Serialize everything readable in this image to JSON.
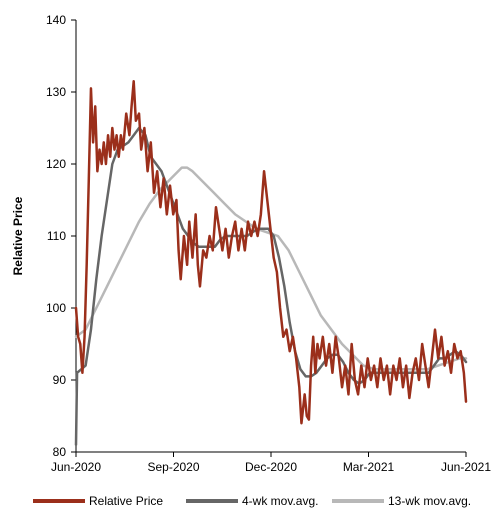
{
  "chart_data": {
    "type": "line",
    "title": "",
    "xlabel": "",
    "ylabel": "Relative Price",
    "ylim": [
      80,
      140
    ],
    "yticks": [
      "80",
      "90",
      "100",
      "110",
      "120",
      "130",
      "140"
    ],
    "xticks": [
      "Jun-2020",
      "Sep-2020",
      "Dec-2020",
      "Mar-2021",
      "Jun-2021"
    ],
    "x_range": [
      "2020-06-01",
      "2021-06-01"
    ],
    "grid": false,
    "legend_position": "bottom",
    "colors": {
      "relative_price": "#9b2f1b",
      "mov4": "#666666",
      "mov13": "#b8b8b8"
    },
    "series": [
      {
        "name": "Relative Price",
        "key": "relative_price",
        "points": [
          [
            "2020-06-01",
            100
          ],
          [
            "2020-06-03",
            96
          ],
          [
            "2020-06-05",
            95
          ],
          [
            "2020-06-07",
            91
          ],
          [
            "2020-06-09",
            96
          ],
          [
            "2020-06-11",
            106
          ],
          [
            "2020-06-13",
            118
          ],
          [
            "2020-06-15",
            130.5
          ],
          [
            "2020-06-17",
            123
          ],
          [
            "2020-06-19",
            128
          ],
          [
            "2020-06-21",
            119
          ],
          [
            "2020-06-23",
            122
          ],
          [
            "2020-06-25",
            120
          ],
          [
            "2020-06-27",
            123
          ],
          [
            "2020-06-29",
            120
          ],
          [
            "2020-07-01",
            124
          ],
          [
            "2020-07-03",
            121
          ],
          [
            "2020-07-05",
            125
          ],
          [
            "2020-07-07",
            122
          ],
          [
            "2020-07-09",
            124
          ],
          [
            "2020-07-11",
            121
          ],
          [
            "2020-07-13",
            124
          ],
          [
            "2020-07-15",
            122
          ],
          [
            "2020-07-18",
            127
          ],
          [
            "2020-07-21",
            124
          ],
          [
            "2020-07-23",
            128
          ],
          [
            "2020-07-25",
            131.5
          ],
          [
            "2020-07-27",
            126
          ],
          [
            "2020-07-30",
            127
          ],
          [
            "2020-08-01",
            122
          ],
          [
            "2020-08-04",
            125
          ],
          [
            "2020-08-07",
            119
          ],
          [
            "2020-08-10",
            123
          ],
          [
            "2020-08-13",
            116
          ],
          [
            "2020-08-16",
            119
          ],
          [
            "2020-08-19",
            114
          ],
          [
            "2020-08-22",
            118
          ],
          [
            "2020-08-25",
            113
          ],
          [
            "2020-08-28",
            117
          ],
          [
            "2020-08-31",
            113
          ],
          [
            "2020-09-03",
            115
          ],
          [
            "2020-09-05",
            108
          ],
          [
            "2020-09-07",
            104
          ],
          [
            "2020-09-10",
            110
          ],
          [
            "2020-09-13",
            106
          ],
          [
            "2020-09-15",
            112
          ],
          [
            "2020-09-18",
            107
          ],
          [
            "2020-09-21",
            113
          ],
          [
            "2020-09-23",
            106
          ],
          [
            "2020-09-25",
            103
          ],
          [
            "2020-09-28",
            108
          ],
          [
            "2020-10-01",
            107
          ],
          [
            "2020-10-04",
            110
          ],
          [
            "2020-10-07",
            108
          ],
          [
            "2020-10-10",
            114
          ],
          [
            "2020-10-13",
            111
          ],
          [
            "2020-10-16",
            108
          ],
          [
            "2020-10-19",
            111
          ],
          [
            "2020-10-22",
            107
          ],
          [
            "2020-10-25",
            110
          ],
          [
            "2020-10-28",
            112
          ],
          [
            "2020-10-31",
            108
          ],
          [
            "2020-11-03",
            111
          ],
          [
            "2020-11-06",
            108
          ],
          [
            "2020-11-09",
            112
          ],
          [
            "2020-11-12",
            110
          ],
          [
            "2020-11-15",
            112
          ],
          [
            "2020-11-18",
            110
          ],
          [
            "2020-11-21",
            113
          ],
          [
            "2020-11-24",
            119
          ],
          [
            "2020-11-27",
            115
          ],
          [
            "2020-11-30",
            111
          ],
          [
            "2020-12-03",
            107
          ],
          [
            "2020-12-06",
            105
          ],
          [
            "2020-12-09",
            100
          ],
          [
            "2020-12-12",
            96
          ],
          [
            "2020-12-15",
            97
          ],
          [
            "2020-12-18",
            94
          ],
          [
            "2020-12-21",
            96
          ],
          [
            "2020-12-24",
            93
          ],
          [
            "2020-12-27",
            89
          ],
          [
            "2020-12-29",
            84
          ],
          [
            "2021-01-01",
            88
          ],
          [
            "2021-01-03",
            85
          ],
          [
            "2021-01-05",
            84.5
          ],
          [
            "2021-01-07",
            92
          ],
          [
            "2021-01-09",
            96
          ],
          [
            "2021-01-11",
            91
          ],
          [
            "2021-01-13",
            95
          ],
          [
            "2021-01-15",
            93
          ],
          [
            "2021-01-18",
            96
          ],
          [
            "2021-01-21",
            92
          ],
          [
            "2021-01-24",
            95
          ],
          [
            "2021-01-27",
            91
          ],
          [
            "2021-01-30",
            96
          ],
          [
            "2021-02-02",
            93
          ],
          [
            "2021-02-05",
            89
          ],
          [
            "2021-02-08",
            92
          ],
          [
            "2021-02-11",
            88
          ],
          [
            "2021-02-14",
            95
          ],
          [
            "2021-02-17",
            90
          ],
          [
            "2021-02-20",
            88
          ],
          [
            "2021-02-23",
            92
          ],
          [
            "2021-02-26",
            89
          ],
          [
            "2021-03-01",
            93
          ],
          [
            "2021-03-04",
            90
          ],
          [
            "2021-03-07",
            92
          ],
          [
            "2021-03-10",
            89
          ],
          [
            "2021-03-13",
            93
          ],
          [
            "2021-03-16",
            90
          ],
          [
            "2021-03-19",
            92
          ],
          [
            "2021-03-22",
            88
          ],
          [
            "2021-03-25",
            92
          ],
          [
            "2021-03-28",
            90
          ],
          [
            "2021-03-31",
            93
          ],
          [
            "2021-04-03",
            89
          ],
          [
            "2021-04-06",
            92
          ],
          [
            "2021-04-09",
            87.5
          ],
          [
            "2021-04-12",
            91
          ],
          [
            "2021-04-15",
            93
          ],
          [
            "2021-04-18",
            90
          ],
          [
            "2021-04-21",
            95
          ],
          [
            "2021-04-24",
            92
          ],
          [
            "2021-04-27",
            89
          ],
          [
            "2021-04-30",
            93
          ],
          [
            "2021-05-03",
            97
          ],
          [
            "2021-05-06",
            93
          ],
          [
            "2021-05-09",
            96
          ],
          [
            "2021-05-12",
            92
          ],
          [
            "2021-05-15",
            94
          ],
          [
            "2021-05-18",
            91
          ],
          [
            "2021-05-21",
            95
          ],
          [
            "2021-05-24",
            93
          ],
          [
            "2021-05-27",
            94
          ],
          [
            "2021-05-30",
            91
          ],
          [
            "2021-06-01",
            87
          ]
        ]
      },
      {
        "name": "4-wk mov.avg.",
        "key": "mov4",
        "points": [
          [
            "2020-06-01",
            81
          ],
          [
            "2020-06-02",
            91
          ],
          [
            "2020-06-10",
            92
          ],
          [
            "2020-06-15",
            97
          ],
          [
            "2020-06-20",
            104
          ],
          [
            "2020-06-25",
            110
          ],
          [
            "2020-06-30",
            115
          ],
          [
            "2020-07-05",
            120
          ],
          [
            "2020-07-10",
            122
          ],
          [
            "2020-07-15",
            122.5
          ],
          [
            "2020-07-20",
            123
          ],
          [
            "2020-07-25",
            124
          ],
          [
            "2020-07-30",
            125
          ],
          [
            "2020-08-05",
            124
          ],
          [
            "2020-08-10",
            121
          ],
          [
            "2020-08-15",
            120
          ],
          [
            "2020-08-20",
            119
          ],
          [
            "2020-08-25",
            117
          ],
          [
            "2020-08-30",
            115
          ],
          [
            "2020-09-04",
            113
          ],
          [
            "2020-09-09",
            111
          ],
          [
            "2020-09-14",
            110
          ],
          [
            "2020-09-19",
            109
          ],
          [
            "2020-09-24",
            108.5
          ],
          [
            "2020-09-29",
            108.5
          ],
          [
            "2020-10-04",
            108.5
          ],
          [
            "2020-10-09",
            108.5
          ],
          [
            "2020-10-14",
            109.5
          ],
          [
            "2020-10-19",
            110
          ],
          [
            "2020-10-24",
            110
          ],
          [
            "2020-10-29",
            110
          ],
          [
            "2020-11-03",
            110
          ],
          [
            "2020-11-08",
            110
          ],
          [
            "2020-11-13",
            110.5
          ],
          [
            "2020-11-18",
            111
          ],
          [
            "2020-11-23",
            111
          ],
          [
            "2020-11-28",
            111
          ],
          [
            "2020-12-03",
            110
          ],
          [
            "2020-12-08",
            107
          ],
          [
            "2020-12-13",
            103
          ],
          [
            "2020-12-18",
            98
          ],
          [
            "2020-12-23",
            94
          ],
          [
            "2020-12-28",
            91.5
          ],
          [
            "2021-01-02",
            90.5
          ],
          [
            "2021-01-07",
            90.5
          ],
          [
            "2021-01-12",
            91
          ],
          [
            "2021-01-17",
            92
          ],
          [
            "2021-01-22",
            93
          ],
          [
            "2021-01-27",
            93.5
          ],
          [
            "2021-02-01",
            93.5
          ],
          [
            "2021-02-06",
            92.5
          ],
          [
            "2021-02-11",
            91
          ],
          [
            "2021-02-16",
            90
          ],
          [
            "2021-02-21",
            89.5
          ],
          [
            "2021-02-26",
            90
          ],
          [
            "2021-03-03",
            91
          ],
          [
            "2021-03-08",
            91
          ],
          [
            "2021-03-13",
            91
          ],
          [
            "2021-03-18",
            91
          ],
          [
            "2021-03-23",
            91
          ],
          [
            "2021-03-28",
            91
          ],
          [
            "2021-04-02",
            91
          ],
          [
            "2021-04-07",
            91
          ],
          [
            "2021-04-12",
            91
          ],
          [
            "2021-04-17",
            91
          ],
          [
            "2021-04-22",
            91
          ],
          [
            "2021-04-27",
            91
          ],
          [
            "2021-05-02",
            92
          ],
          [
            "2021-05-07",
            93
          ],
          [
            "2021-05-12",
            93
          ],
          [
            "2021-05-17",
            93.5
          ],
          [
            "2021-05-22",
            94
          ],
          [
            "2021-05-27",
            93.5
          ],
          [
            "2021-06-01",
            92.5
          ]
        ]
      },
      {
        "name": "13-wk mov.avg.",
        "key": "mov13",
        "points": [
          [
            "2020-06-01",
            96
          ],
          [
            "2020-06-10",
            97
          ],
          [
            "2020-06-20",
            100
          ],
          [
            "2020-06-30",
            103
          ],
          [
            "2020-07-10",
            106
          ],
          [
            "2020-07-20",
            109
          ],
          [
            "2020-07-30",
            112
          ],
          [
            "2020-08-09",
            114.5
          ],
          [
            "2020-08-19",
            116.5
          ],
          [
            "2020-08-29",
            118
          ],
          [
            "2020-09-08",
            119.5
          ],
          [
            "2020-09-13",
            119.5
          ],
          [
            "2020-09-18",
            119
          ],
          [
            "2020-09-28",
            117.5
          ],
          [
            "2020-10-08",
            116
          ],
          [
            "2020-10-18",
            114.5
          ],
          [
            "2020-10-28",
            113
          ],
          [
            "2020-11-07",
            112
          ],
          [
            "2020-11-17",
            111
          ],
          [
            "2020-11-27",
            110.5
          ],
          [
            "2020-12-07",
            110
          ],
          [
            "2020-12-17",
            108
          ],
          [
            "2020-12-27",
            105
          ],
          [
            "2021-01-06",
            102
          ],
          [
            "2021-01-16",
            99
          ],
          [
            "2021-01-26",
            97
          ],
          [
            "2021-02-05",
            95
          ],
          [
            "2021-02-15",
            93.5
          ],
          [
            "2021-02-25",
            92
          ],
          [
            "2021-03-07",
            91.5
          ],
          [
            "2021-03-17",
            91.5
          ],
          [
            "2021-03-27",
            91.5
          ],
          [
            "2021-04-06",
            91.5
          ],
          [
            "2021-04-16",
            91.5
          ],
          [
            "2021-04-26",
            91.5
          ],
          [
            "2021-05-06",
            92
          ],
          [
            "2021-05-16",
            92.5
          ],
          [
            "2021-05-26",
            93
          ],
          [
            "2021-06-01",
            93
          ]
        ]
      }
    ]
  }
}
